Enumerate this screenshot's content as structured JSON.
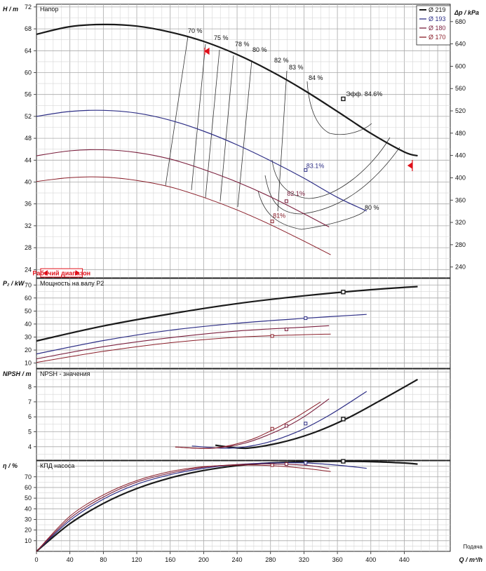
{
  "colors": {
    "grid": "#b8b8b8",
    "d219": "#1a1a1a",
    "d193": "#2e2f86",
    "d180": "#7a1f3d",
    "d170": "#8a1f2a",
    "accent": "#e0101a"
  },
  "legend": [
    {
      "label": "Ø 219",
      "color": "#1a1a1a"
    },
    {
      "label": "Ø 193",
      "color": "#2e2f86"
    },
    {
      "label": "Ø 180",
      "color": "#7a1f3d"
    },
    {
      "label": "Ø 170",
      "color": "#8a1f2a"
    }
  ],
  "x_axis": {
    "label": "Q / m³/h",
    "side_label": "Подача",
    "ticks": [
      "0",
      "40",
      "80",
      "120",
      "160",
      "200",
      "240",
      "280",
      "320",
      "360",
      "400",
      "440"
    ]
  },
  "operating_range_label": "Рабочий диапазон",
  "chart_data": [
    {
      "type": "line",
      "title": "Напор",
      "ylabel": "H / m",
      "y2label": "Δp / kPa",
      "xlim": [
        0,
        495
      ],
      "ylim": [
        22.5,
        72.5
      ],
      "y_ticks": [
        "24",
        "28",
        "32",
        "36",
        "40",
        "44",
        "48",
        "52",
        "56",
        "60",
        "64",
        "68",
        "72"
      ],
      "y2_ticks": [
        "240",
        "280",
        "320",
        "360",
        "400",
        "440",
        "480",
        "520",
        "560",
        "600",
        "640",
        "680"
      ],
      "series": [
        {
          "name": "Ø 219",
          "x": [
            0,
            40,
            80,
            120,
            160,
            200,
            240,
            280,
            320,
            360,
            400,
            440,
            456
          ],
          "y": [
            67,
            68.4,
            68.8,
            68.5,
            67.4,
            65.7,
            63.3,
            60.3,
            56.8,
            52.9,
            48.9,
            45.5,
            44.8
          ]
        },
        {
          "name": "Ø 193",
          "x": [
            0,
            40,
            80,
            120,
            160,
            200,
            240,
            280,
            320,
            360,
            395
          ],
          "y": [
            52,
            52.9,
            53.1,
            52.6,
            51.3,
            49.3,
            46.8,
            43.9,
            40.7,
            37.2,
            34.7
          ]
        },
        {
          "name": "Ø 180",
          "x": [
            0,
            40,
            80,
            120,
            160,
            200,
            240,
            280,
            320,
            350
          ],
          "y": [
            44.8,
            45.7,
            45.9,
            45.4,
            44.2,
            42.3,
            40,
            37.3,
            34.2,
            31.8
          ]
        },
        {
          "name": "Ø 170",
          "x": [
            0,
            40,
            80,
            120,
            160,
            200,
            240,
            280,
            320,
            352
          ],
          "y": [
            40.1,
            40.8,
            40.9,
            40.3,
            39.1,
            37.2,
            34.9,
            32.2,
            29.2,
            26.7
          ]
        }
      ],
      "markers": [
        {
          "x": 367,
          "y": 55.2,
          "label": "Эфф.",
          "value": "84.6%"
        },
        {
          "x": 322,
          "y": 42.2,
          "value": "83.1%"
        },
        {
          "x": 299,
          "y": 36.5,
          "value": "82.1%"
        },
        {
          "x": 282,
          "y": 32.8,
          "value": "81%"
        }
      ],
      "efficiency_labels": [
        "70 %",
        "75 %",
        "78 %",
        "80 %",
        "82 %",
        "83 %",
        "84 %",
        "80 %"
      ]
    },
    {
      "type": "line",
      "title": "Мощность на валу P2",
      "ylabel": "P₂ / kW",
      "xlim": [
        0,
        495
      ],
      "ylim": [
        6,
        75
      ],
      "y_ticks": [
        "10",
        "20",
        "30",
        "40",
        "50",
        "60",
        "70"
      ],
      "series": [
        {
          "name": "Ø 219",
          "x": [
            0,
            80,
            160,
            240,
            320,
            400,
            456
          ],
          "y": [
            27,
            38.5,
            47.8,
            55.7,
            61.7,
            66.4,
            68.8
          ]
        },
        {
          "name": "Ø 193",
          "x": [
            0,
            80,
            160,
            240,
            320,
            395
          ],
          "y": [
            17,
            27.3,
            35.2,
            40.6,
            44.4,
            47.4
          ]
        },
        {
          "name": "Ø 180",
          "x": [
            0,
            80,
            160,
            240,
            320,
            350
          ],
          "y": [
            13.2,
            22.6,
            29.5,
            34.6,
            37.6,
            38.7
          ]
        },
        {
          "name": "Ø 170",
          "x": [
            0,
            80,
            160,
            240,
            320,
            352
          ],
          "y": [
            10.5,
            19,
            25.6,
            29.9,
            31.8,
            32.3
          ]
        }
      ],
      "markers": [
        {
          "x": 367,
          "y": 64.6
        },
        {
          "x": 322,
          "y": 44.5
        },
        {
          "x": 299,
          "y": 35.9
        },
        {
          "x": 282,
          "y": 30.8
        }
      ]
    },
    {
      "type": "line",
      "title": "NPSH - значения",
      "ylabel": "NPSH / m",
      "xlim": [
        0,
        495
      ],
      "ylim": [
        3.1,
        9.2
      ],
      "y_ticks": [
        "4",
        "5",
        "6",
        "7",
        "8"
      ],
      "series": [
        {
          "name": "Ø 219",
          "x": [
            214,
            250,
            290,
            330,
            370,
            410,
            456
          ],
          "y": [
            4.1,
            3.9,
            4.25,
            4.9,
            5.85,
            7.05,
            8.5
          ]
        },
        {
          "name": "Ø 193",
          "x": [
            186,
            230,
            270,
            310,
            350,
            395
          ],
          "y": [
            4.05,
            3.9,
            4.2,
            4.95,
            6.1,
            7.7
          ]
        },
        {
          "name": "Ø 180",
          "x": [
            166,
            210,
            250,
            290,
            320,
            350
          ],
          "y": [
            3.98,
            3.9,
            4.25,
            5.1,
            6,
            7.2
          ]
        },
        {
          "name": "Ø 170",
          "x": [
            166,
            210,
            250,
            280,
            310,
            340
          ],
          "y": [
            3.98,
            3.9,
            4.35,
            5.05,
            5.95,
            7
          ]
        }
      ],
      "markers": [
        {
          "x": 367,
          "y": 5.85
        },
        {
          "x": 322,
          "y": 5.55
        },
        {
          "x": 299,
          "y": 5.4
        },
        {
          "x": 282,
          "y": 5.2
        }
      ]
    },
    {
      "type": "line",
      "title": "КПД насоса",
      "ylabel": "η / %",
      "xlim": [
        0,
        495
      ],
      "ylim": [
        0,
        85
      ],
      "y_ticks": [
        "10",
        "20",
        "30",
        "40",
        "50",
        "60",
        "70"
      ],
      "series": [
        {
          "name": "Ø 219",
          "x": [
            0,
            40,
            80,
            120,
            160,
            200,
            240,
            280,
            320,
            360,
            400,
            440,
            456
          ],
          "y": [
            0,
            26,
            45,
            59,
            69,
            76,
            80.5,
            83,
            84.2,
            84.6,
            84.3,
            83,
            82
          ]
        },
        {
          "name": "Ø 193",
          "x": [
            0,
            40,
            80,
            120,
            160,
            200,
            240,
            280,
            320,
            360,
            395
          ],
          "y": [
            0,
            29,
            49,
            63,
            72,
            78,
            81.5,
            83,
            83.1,
            81,
            78
          ]
        },
        {
          "name": "Ø 180",
          "x": [
            0,
            40,
            80,
            120,
            160,
            200,
            240,
            280,
            320,
            350
          ],
          "y": [
            0,
            31,
            51,
            65,
            73.5,
            79,
            81.5,
            82.1,
            81,
            78
          ]
        },
        {
          "name": "Ø 170",
          "x": [
            0,
            40,
            80,
            120,
            160,
            200,
            240,
            280,
            320,
            352
          ],
          "y": [
            0,
            33,
            53,
            66.5,
            75,
            79.5,
            81,
            80.5,
            78,
            75
          ]
        }
      ],
      "markers": [
        {
          "x": 367,
          "y": 84.6
        },
        {
          "x": 322,
          "y": 83.1
        },
        {
          "x": 299,
          "y": 82.1
        },
        {
          "x": 282,
          "y": 81
        }
      ]
    }
  ]
}
